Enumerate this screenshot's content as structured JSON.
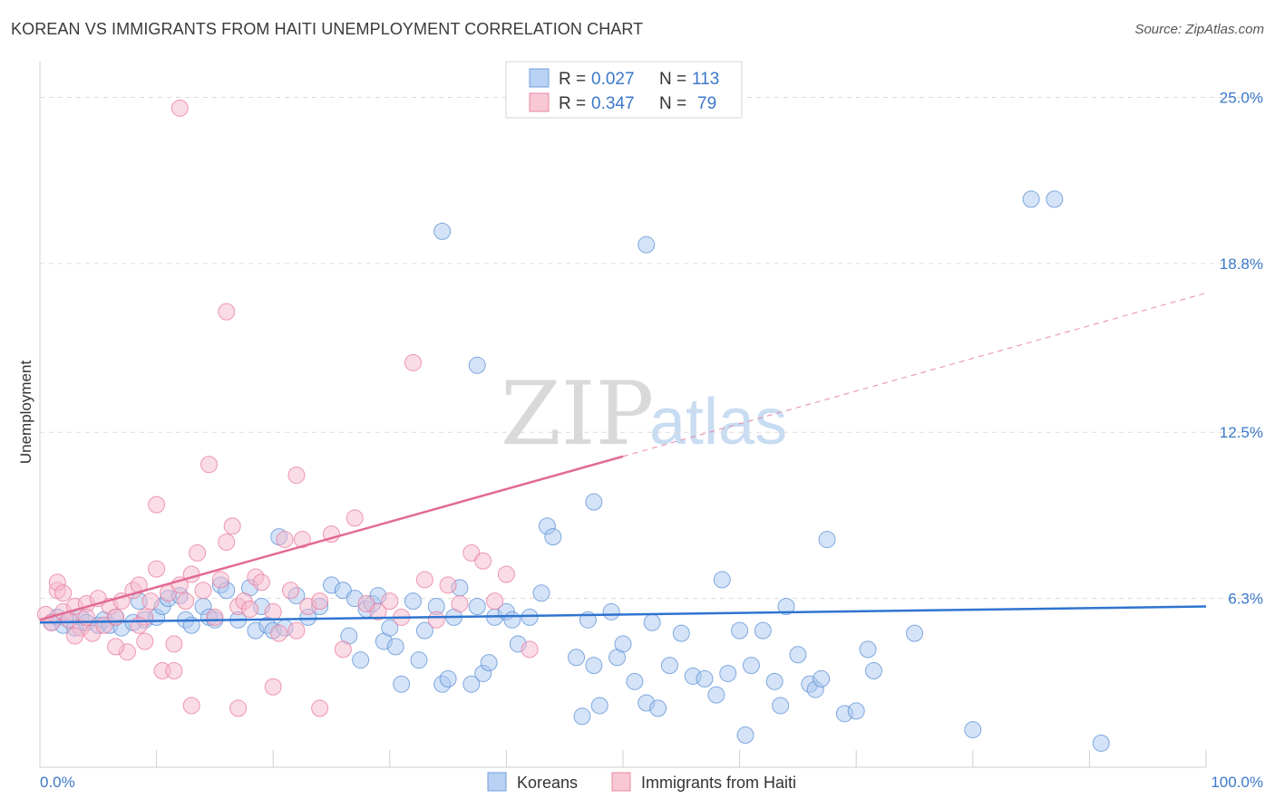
{
  "title": "KOREAN VS IMMIGRANTS FROM HAITI UNEMPLOYMENT CORRELATION CHART",
  "source": "Source: ZipAtlas.com",
  "watermark": {
    "zip": "ZIP",
    "atlas": "atlas"
  },
  "colors": {
    "koreans": "#5b8fd6",
    "koreans_fill": "#a9c8ef",
    "haiti": "#e8799c",
    "haiti_fill": "#f6b9cd",
    "tick_text": "#3b78c9"
  },
  "legend": {
    "rows": [
      {
        "r_label": "R =",
        "r_value": "0.027",
        "n_label": "N =",
        "n_value": "113"
      },
      {
        "r_label": "R =",
        "r_value": "0.347",
        "n_label": "N =",
        "n_value": "79"
      }
    ]
  },
  "bottom_legend": {
    "koreans": "Koreans",
    "haiti": "Immigrants from Haiti"
  },
  "chart_data": {
    "type": "scatter",
    "title": "KOREAN VS IMMIGRANTS FROM HAITI UNEMPLOYMENT CORRELATION CHART",
    "xlabel": "",
    "ylabel": "Unemployment",
    "xlim": [
      0,
      100
    ],
    "ylim": [
      0,
      26.2
    ],
    "x_tick_labels": [
      "0.0%",
      "100.0%"
    ],
    "y_ticks": [
      6.3,
      12.5,
      18.8,
      25.0
    ],
    "y_tick_labels": [
      "6.3%",
      "12.5%",
      "18.8%",
      "25.0%"
    ],
    "grid": "horizontal dashed",
    "legend_position": "top-center",
    "series": [
      {
        "name": "Koreans",
        "trend": {
          "x": [
            0,
            100
          ],
          "y": [
            5.4,
            6.0
          ]
        },
        "points": [
          [
            1,
            5.4
          ],
          [
            1.5,
            5.6
          ],
          [
            2,
            5.3
          ],
          [
            2.5,
            5.5
          ],
          [
            3,
            5.2
          ],
          [
            3.5,
            5.6
          ],
          [
            4,
            5.4
          ],
          [
            5,
            5.3
          ],
          [
            5.5,
            5.5
          ],
          [
            6,
            5.3
          ],
          [
            6.5,
            5.6
          ],
          [
            7,
            5.2
          ],
          [
            8,
            5.4
          ],
          [
            8.5,
            6.2
          ],
          [
            9,
            5.5
          ],
          [
            10,
            5.6
          ],
          [
            10.5,
            6.0
          ],
          [
            11,
            6.3
          ],
          [
            12,
            6.4
          ],
          [
            12.5,
            5.5
          ],
          [
            13,
            5.3
          ],
          [
            14,
            6.0
          ],
          [
            14.5,
            5.6
          ],
          [
            15,
            5.5
          ],
          [
            15.5,
            6.8
          ],
          [
            16,
            6.6
          ],
          [
            17,
            5.5
          ],
          [
            18,
            6.7
          ],
          [
            18.5,
            5.1
          ],
          [
            19,
            6.0
          ],
          [
            19.5,
            5.3
          ],
          [
            20,
            5.1
          ],
          [
            20.5,
            8.6
          ],
          [
            21,
            5.2
          ],
          [
            22,
            6.4
          ],
          [
            23,
            5.6
          ],
          [
            24,
            6.0
          ],
          [
            25,
            6.8
          ],
          [
            26,
            6.6
          ],
          [
            26.5,
            4.9
          ],
          [
            27,
            6.3
          ],
          [
            27.5,
            4.0
          ],
          [
            28,
            5.9
          ],
          [
            28.5,
            6.1
          ],
          [
            29,
            6.4
          ],
          [
            29.5,
            4.7
          ],
          [
            30,
            5.2
          ],
          [
            30.5,
            4.5
          ],
          [
            31,
            3.1
          ],
          [
            32,
            6.2
          ],
          [
            32.5,
            4.0
          ],
          [
            33,
            5.1
          ],
          [
            34,
            6.0
          ],
          [
            34.5,
            3.1
          ],
          [
            35,
            3.3
          ],
          [
            35.5,
            5.6
          ],
          [
            36,
            6.7
          ],
          [
            37,
            3.1
          ],
          [
            37.5,
            6.0
          ],
          [
            38,
            3.5
          ],
          [
            38.5,
            3.9
          ],
          [
            39,
            5.6
          ],
          [
            40,
            5.8
          ],
          [
            40.5,
            5.5
          ],
          [
            41,
            4.6
          ],
          [
            42,
            5.6
          ],
          [
            43,
            6.5
          ],
          [
            43.5,
            9.0
          ],
          [
            44,
            8.6
          ],
          [
            34.5,
            20.0
          ],
          [
            37.5,
            15.0
          ],
          [
            46,
            4.1
          ],
          [
            46.5,
            1.9
          ],
          [
            47,
            5.5
          ],
          [
            47.5,
            3.8
          ],
          [
            48,
            2.3
          ],
          [
            49,
            5.8
          ],
          [
            49.5,
            4.1
          ],
          [
            50,
            4.6
          ],
          [
            51,
            3.2
          ],
          [
            52,
            2.4
          ],
          [
            52.5,
            5.4
          ],
          [
            53,
            2.2
          ],
          [
            54,
            3.8
          ],
          [
            55,
            5.0
          ],
          [
            56,
            3.4
          ],
          [
            57,
            3.3
          ],
          [
            58,
            2.7
          ],
          [
            58.5,
            7.0
          ],
          [
            59,
            3.5
          ],
          [
            60,
            5.1
          ],
          [
            60.5,
            1.2
          ],
          [
            61,
            3.8
          ],
          [
            62,
            5.1
          ],
          [
            63,
            3.2
          ],
          [
            63.5,
            2.3
          ],
          [
            64,
            6.0
          ],
          [
            65,
            4.2
          ],
          [
            66,
            3.1
          ],
          [
            66.5,
            2.9
          ],
          [
            67,
            3.3
          ],
          [
            67.5,
            8.5
          ],
          [
            69,
            2.0
          ],
          [
            70,
            2.1
          ],
          [
            71,
            4.4
          ],
          [
            71.5,
            3.6
          ],
          [
            75,
            5.0
          ],
          [
            80,
            1.4
          ],
          [
            85,
            21.2
          ],
          [
            87,
            21.2
          ],
          [
            91,
            0.9
          ],
          [
            47.5,
            9.9
          ],
          [
            52,
            19.5
          ]
        ]
      },
      {
        "name": "Immigrants from Haiti",
        "trend": {
          "x": [
            0,
            50
          ],
          "y": [
            5.5,
            11.6
          ]
        },
        "trend_dashed": {
          "x": [
            50,
            100
          ],
          "y": [
            11.6,
            17.7
          ]
        },
        "points": [
          [
            0.5,
            5.7
          ],
          [
            1,
            5.4
          ],
          [
            1.5,
            6.6
          ],
          [
            2,
            5.8
          ],
          [
            2.5,
            5.5
          ],
          [
            3,
            6.0
          ],
          [
            3.5,
            5.2
          ],
          [
            4,
            6.1
          ],
          [
            4.5,
            5.0
          ],
          [
            5,
            6.3
          ],
          [
            5.5,
            5.3
          ],
          [
            6,
            6.0
          ],
          [
            6.5,
            5.6
          ],
          [
            7,
            6.2
          ],
          [
            7.5,
            4.3
          ],
          [
            8,
            6.6
          ],
          [
            8.5,
            6.8
          ],
          [
            9,
            5.6
          ],
          [
            9.5,
            6.2
          ],
          [
            10,
            7.4
          ],
          [
            10.5,
            3.6
          ],
          [
            11,
            6.5
          ],
          [
            11.5,
            4.6
          ],
          [
            12,
            6.8
          ],
          [
            12.5,
            6.2
          ],
          [
            13,
            7.2
          ],
          [
            13.5,
            8.0
          ],
          [
            14,
            6.6
          ],
          [
            14.5,
            11.3
          ],
          [
            15,
            5.6
          ],
          [
            15.5,
            7.0
          ],
          [
            16,
            8.4
          ],
          [
            16.5,
            9.0
          ],
          [
            17,
            6.0
          ],
          [
            17.5,
            6.2
          ],
          [
            18,
            5.9
          ],
          [
            18.5,
            7.1
          ],
          [
            19,
            6.9
          ],
          [
            20,
            5.8
          ],
          [
            20.5,
            5.0
          ],
          [
            21,
            8.5
          ],
          [
            21.5,
            6.6
          ],
          [
            22,
            10.9
          ],
          [
            22.5,
            8.5
          ],
          [
            23,
            6.0
          ],
          [
            24,
            6.2
          ],
          [
            25,
            8.7
          ],
          [
            26,
            4.4
          ],
          [
            27,
            9.3
          ],
          [
            28,
            6.1
          ],
          [
            29,
            5.8
          ],
          [
            30,
            6.2
          ],
          [
            31,
            5.6
          ],
          [
            32,
            15.1
          ],
          [
            33,
            7.0
          ],
          [
            34,
            5.5
          ],
          [
            35,
            6.8
          ],
          [
            36,
            6.1
          ],
          [
            37,
            8.0
          ],
          [
            38,
            7.7
          ],
          [
            39,
            6.2
          ],
          [
            40,
            7.2
          ],
          [
            42,
            4.4
          ],
          [
            12,
            24.6
          ],
          [
            16,
            17.0
          ],
          [
            13,
            2.3
          ],
          [
            17,
            2.2
          ],
          [
            20,
            3.0
          ],
          [
            22,
            5.1
          ],
          [
            24,
            2.2
          ],
          [
            10,
            9.8
          ],
          [
            11.5,
            3.6
          ],
          [
            1.5,
            6.9
          ],
          [
            3,
            4.9
          ],
          [
            6.5,
            4.5
          ],
          [
            8.5,
            5.3
          ],
          [
            9,
            4.7
          ],
          [
            2,
            6.5
          ],
          [
            4,
            5.6
          ]
        ]
      }
    ]
  }
}
